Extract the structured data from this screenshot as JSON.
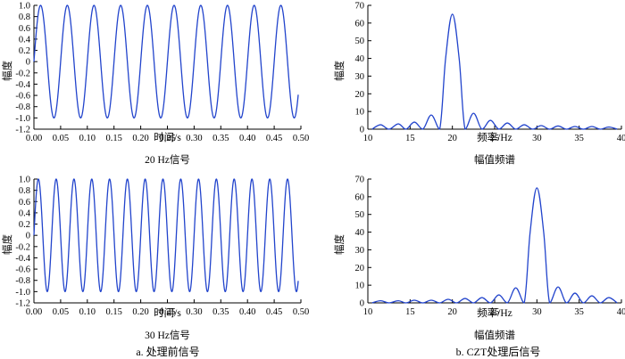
{
  "charts": [
    {
      "id": "signal_20hz",
      "type": "line",
      "color": "#2244cc",
      "xlabel": "时间/s",
      "ylabel": "幅度",
      "subtitle": "20 Hz信号",
      "xlim": [
        0,
        0.5
      ],
      "ylim": [
        -1.2,
        1.0
      ],
      "xticks": [
        "0.00",
        "0.05",
        "0.10",
        "0.15",
        "0.20",
        "0.25",
        "0.30",
        "0.35",
        "0.40",
        "0.45",
        "0.50"
      ],
      "yticks": [
        "1.0",
        "0.8",
        "0.6",
        "0.4",
        "0.2",
        "0",
        "-0.2",
        "-0.4",
        "-0.6",
        "-0.8",
        "-1.0",
        "-1.2"
      ],
      "signal": {
        "frequency_hz": 20,
        "amplitude": 1.0,
        "duration_s": 0.495
      }
    },
    {
      "id": "spectrum_20hz",
      "type": "line",
      "color": "#2244cc",
      "xlabel": "频率/Hz",
      "ylabel": "幅度",
      "subtitle": "幅值频谱",
      "xlim": [
        10,
        40
      ],
      "ylim": [
        0,
        70
      ],
      "xticks": [
        "10",
        "15",
        "20",
        "25",
        "30",
        "35",
        "40"
      ],
      "yticks": [
        "70",
        "60",
        "50",
        "40",
        "30",
        "20",
        "10",
        "0"
      ],
      "x": [
        10.5,
        11.5,
        12.5,
        13.6,
        14.5,
        15.5,
        16.5,
        17.5,
        18.5,
        19.2,
        20.0,
        20.8,
        21.5,
        22.5,
        23.5,
        24.5,
        25.5,
        26.5,
        27.5,
        28.5,
        29.5,
        30.5,
        31.5,
        32.5,
        33.5,
        34.5,
        35.5,
        36.5,
        37.5,
        38.5,
        39.5
      ],
      "y": [
        0,
        2.5,
        0,
        3.0,
        0,
        4.0,
        0,
        8.0,
        0,
        40,
        65,
        40,
        0,
        9.0,
        0,
        5.0,
        0,
        3.5,
        0,
        2.5,
        0,
        2.0,
        0,
        1.8,
        0,
        1.5,
        0,
        1.5,
        0,
        1.2,
        0
      ]
    },
    {
      "id": "signal_30hz",
      "type": "line",
      "color": "#2244cc",
      "xlabel": "时间/s",
      "ylabel": "幅度",
      "subtitle": "30 Hz信号",
      "xlim": [
        0,
        0.5
      ],
      "ylim": [
        -1.2,
        1.0
      ],
      "xticks": [
        "0.00",
        "0.05",
        "0.10",
        "0.15",
        "0.20",
        "0.25",
        "0.30",
        "0.35",
        "0.40",
        "0.45",
        "0.50"
      ],
      "yticks": [
        "1.0",
        "0.8",
        "0.6",
        "0.4",
        "0.2",
        "0",
        "-0.2",
        "-0.4",
        "-0.6",
        "-0.8",
        "-1.0",
        "-1.2"
      ],
      "signal": {
        "frequency_hz": 30,
        "amplitude": 1.0,
        "duration_s": 0.495
      }
    },
    {
      "id": "spectrum_30hz",
      "type": "line",
      "color": "#2244cc",
      "xlabel": "频率/Hz",
      "ylabel": "幅度",
      "subtitle": "幅值频谱",
      "xlim": [
        10,
        40
      ],
      "ylim": [
        0,
        70
      ],
      "xticks": [
        "10",
        "15",
        "20",
        "25",
        "30",
        "35",
        "40"
      ],
      "yticks": [
        "70",
        "60",
        "50",
        "40",
        "30",
        "20",
        "10",
        "0"
      ],
      "x": [
        10.5,
        11.5,
        12.5,
        13.6,
        14.5,
        15.5,
        16.5,
        17.5,
        18.5,
        19.5,
        20.5,
        21.5,
        22.5,
        23.5,
        24.5,
        25.5,
        26.5,
        27.5,
        28.5,
        29.2,
        30.0,
        30.8,
        31.5,
        32.5,
        33.5,
        34.5,
        35.5,
        36.5,
        37.5,
        38.5,
        39.5
      ],
      "y": [
        0,
        1.2,
        0,
        1.2,
        0,
        1.5,
        0,
        1.5,
        0,
        2.0,
        0,
        2.5,
        0,
        3.0,
        0,
        4.5,
        0,
        8.5,
        0,
        40,
        65,
        40,
        0,
        9.0,
        0,
        5.5,
        0,
        4.0,
        0,
        3.0,
        0
      ]
    }
  ],
  "captions": {
    "a": "a. 处理前信号",
    "b": "b. CZT处理后信号"
  }
}
